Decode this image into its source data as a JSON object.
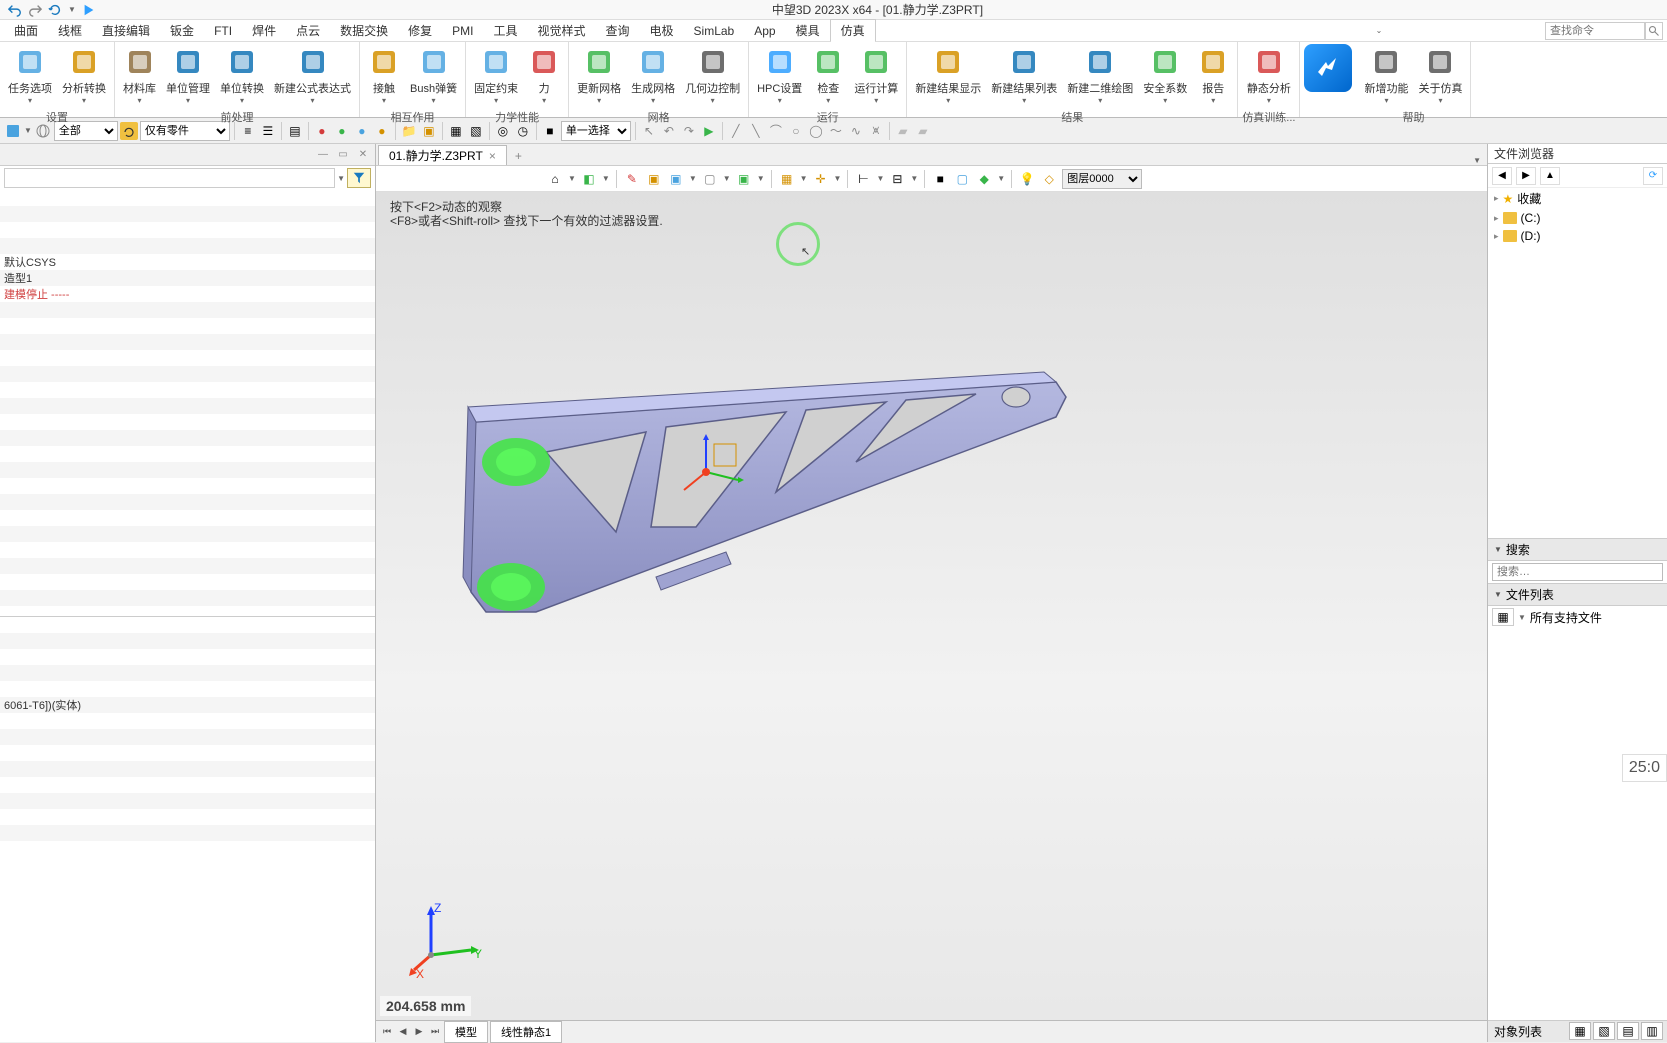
{
  "title": "中望3D 2023X x64 - [01.静力学.Z3PRT]",
  "qat_icons": [
    "undo-icon",
    "redo-icon",
    "refresh-icon",
    "play-icon"
  ],
  "menubar": [
    "曲面",
    "线框",
    "直接编辑",
    "钣金",
    "FTI",
    "焊件",
    "点云",
    "数据交换",
    "修复",
    "PMI",
    "工具",
    "视觉样式",
    "查询",
    "电极",
    "SimLab",
    "App",
    "模具",
    "仿真"
  ],
  "menubar_active": "仿真",
  "search_placeholder": "查找命令",
  "ribbon": {
    "groups": [
      {
        "label": "设置",
        "buttons": [
          {
            "l": "任务选项",
            "c": "#4aa3df"
          },
          {
            "l": "分析转换",
            "c": "#d49100"
          }
        ]
      },
      {
        "label": "前处理",
        "buttons": [
          {
            "l": "材料库",
            "c": "#8e6e3e"
          },
          {
            "l": "单位管理",
            "c": "#1273b5"
          },
          {
            "l": "单位转换",
            "c": "#1273b5"
          },
          {
            "l": "新建公式表达式",
            "c": "#1273b5"
          }
        ]
      },
      {
        "label": "相互作用",
        "buttons": [
          {
            "l": "接触",
            "c": "#d49100"
          },
          {
            "l": "Bush弹簧",
            "c": "#4aa3df"
          }
        ]
      },
      {
        "label": "力学性能",
        "buttons": [
          {
            "l": "固定约束",
            "c": "#4aa3df"
          },
          {
            "l": "力",
            "c": "#d43c3c"
          }
        ]
      },
      {
        "label": "网格",
        "buttons": [
          {
            "l": "更新网格",
            "c": "#39b54a"
          },
          {
            "l": "生成网格",
            "c": "#4aa3df"
          },
          {
            "l": "几何边控制",
            "c": "#555555"
          }
        ]
      },
      {
        "label": "运行",
        "buttons": [
          {
            "l": "HPC设置",
            "c": "#2e9fff"
          },
          {
            "l": "检查",
            "c": "#39b54a"
          },
          {
            "l": "运行计算",
            "c": "#39b54a"
          }
        ]
      },
      {
        "label": "结果",
        "buttons": [
          {
            "l": "新建结果显示",
            "c": "#d49100"
          },
          {
            "l": "新建结果列表",
            "c": "#1273b5"
          },
          {
            "l": "新建二维绘图",
            "c": "#1273b5"
          },
          {
            "l": "安全系数",
            "c": "#39b54a"
          },
          {
            "l": "报告",
            "c": "#d49100"
          }
        ]
      },
      {
        "label": "仿真训练...",
        "buttons": [
          {
            "l": "静态分析",
            "c": "#d43c3c"
          }
        ]
      },
      {
        "label": "帮助",
        "buttons": [
          {
            "l": "新增功能",
            "c": "#555555"
          },
          {
            "l": "关于仿真",
            "c": "#555555"
          }
        ],
        "prelogo": true
      }
    ]
  },
  "sec_toolbar": {
    "scope_dropdown": "全部",
    "parts_only": "仅有零件",
    "selection_mode": "单一选择"
  },
  "doc_tab": "01.静力学.Z3PRT",
  "vp_toolbar": {
    "layer_label": "图层0000"
  },
  "vp_hint_line1": "按下<F2>动态的观察",
  "vp_hint_line2": "<F8>或者<Shift-roll> 查找下一个有效的过滤器设置.",
  "vp_status": "204.658 mm",
  "bottom_tabs": [
    "模型",
    "线性静态1"
  ],
  "tree_items": [
    {
      "t": "默认CSYS",
      "warn": false
    },
    {
      "t": "造型1",
      "warn": false
    },
    {
      "t": "建模停止 -----",
      "warn": true
    }
  ],
  "tree_material": "6061-T6])(实体)",
  "right_panel": {
    "browser_title": "文件浏览器",
    "tree": [
      {
        "label": "收藏",
        "icon": "star"
      },
      {
        "label": "(C:)",
        "icon": "folder"
      },
      {
        "label": "(D:)",
        "icon": "folder"
      }
    ],
    "search_header": "搜索",
    "search_placeholder": "搜索…",
    "filelist_header": "文件列表",
    "all_supported": "所有支持文件",
    "object_list": "对象列表"
  },
  "timestamp": "25:0",
  "colors": {
    "model_fill": "#9fa3d1",
    "model_stroke": "#5b5e88",
    "highlight": "#40e840",
    "bg_top": "#dfdfdf",
    "bg_bot": "#e8e8e8"
  }
}
